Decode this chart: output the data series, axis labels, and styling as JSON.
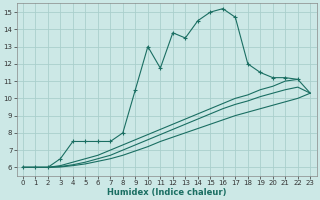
{
  "xlabel": "Humidex (Indice chaleur)",
  "ylabel": "",
  "xlim": [
    -0.5,
    23.5
  ],
  "ylim": [
    5.5,
    15.5
  ],
  "xticks": [
    0,
    1,
    2,
    3,
    4,
    5,
    6,
    7,
    8,
    9,
    10,
    11,
    12,
    13,
    14,
    15,
    16,
    17,
    18,
    19,
    20,
    21,
    22,
    23
  ],
  "yticks": [
    6,
    7,
    8,
    9,
    10,
    11,
    12,
    13,
    14,
    15
  ],
  "background_color": "#cce8e6",
  "grid_color": "#aacfcc",
  "line_color": "#1a6e62",
  "lines": [
    {
      "x": [
        0,
        1,
        2,
        3,
        4,
        5,
        6,
        7,
        8,
        9,
        10,
        11,
        12,
        13,
        14,
        15,
        16,
        17,
        18,
        19,
        20,
        21,
        22
      ],
      "y": [
        6.0,
        6.0,
        6.0,
        6.5,
        7.5,
        7.5,
        7.5,
        7.5,
        8.0,
        10.5,
        13.0,
        11.75,
        13.8,
        13.5,
        14.5,
        15.0,
        15.2,
        14.7,
        12.0,
        11.5,
        11.2,
        11.2,
        11.1
      ],
      "marker": true
    },
    {
      "x": [
        0,
        1,
        2,
        3,
        4,
        5,
        6,
        7,
        8,
        9,
        10,
        11,
        12,
        13,
        14,
        15,
        16,
        17,
        18,
        19,
        20,
        21,
        22,
        23
      ],
      "y": [
        6.0,
        6.0,
        6.0,
        6.1,
        6.3,
        6.5,
        6.7,
        7.0,
        7.3,
        7.6,
        7.9,
        8.2,
        8.5,
        8.8,
        9.1,
        9.4,
        9.7,
        10.0,
        10.2,
        10.5,
        10.7,
        11.0,
        11.1,
        10.3
      ],
      "marker": false
    },
    {
      "x": [
        0,
        1,
        2,
        3,
        4,
        5,
        6,
        7,
        8,
        9,
        10,
        11,
        12,
        13,
        14,
        15,
        16,
        17,
        18,
        19,
        20,
        21,
        22,
        23
      ],
      "y": [
        6.0,
        6.0,
        6.0,
        6.05,
        6.15,
        6.3,
        6.5,
        6.7,
        7.0,
        7.3,
        7.6,
        7.9,
        8.2,
        8.5,
        8.8,
        9.1,
        9.4,
        9.65,
        9.85,
        10.1,
        10.3,
        10.5,
        10.65,
        10.3
      ],
      "marker": false
    },
    {
      "x": [
        0,
        1,
        2,
        3,
        4,
        5,
        6,
        7,
        8,
        9,
        10,
        11,
        12,
        13,
        14,
        15,
        16,
        17,
        18,
        19,
        20,
        21,
        22,
        23
      ],
      "y": [
        6.0,
        6.0,
        6.0,
        6.02,
        6.1,
        6.2,
        6.35,
        6.5,
        6.7,
        6.95,
        7.2,
        7.5,
        7.75,
        8.0,
        8.25,
        8.5,
        8.75,
        9.0,
        9.2,
        9.4,
        9.6,
        9.8,
        10.0,
        10.3
      ],
      "marker": false
    }
  ]
}
